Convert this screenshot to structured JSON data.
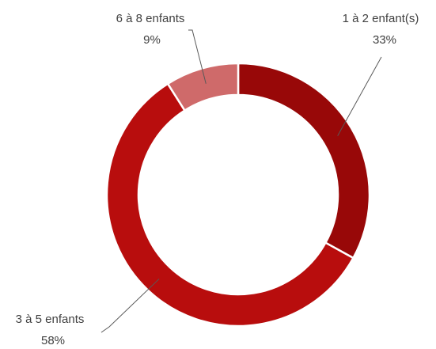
{
  "chart_data": {
    "type": "pie",
    "style": "donut",
    "title": "",
    "slices": [
      {
        "label": "1 à 2 enfant(s)",
        "value": 33,
        "value_label": "33%",
        "color": "#980808"
      },
      {
        "label": "3 à 5 enfants",
        "value": 58,
        "value_label": "58%",
        "color": "#B80D0D"
      },
      {
        "label": "6 à 8 enfants",
        "value": 9,
        "value_label": "9%",
        "color": "#CF6A6A"
      }
    ],
    "legend": "none"
  }
}
